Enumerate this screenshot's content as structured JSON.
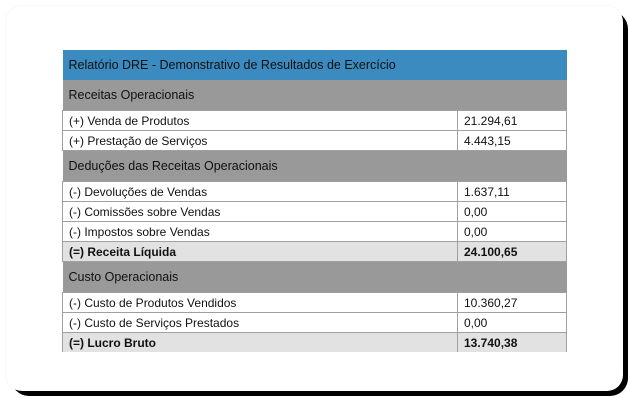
{
  "report": {
    "title": "Relatório DRE - Demonstrativo de Resultados de Exercício",
    "colors": {
      "header_bg": "#3b8ac0",
      "section_bg": "#999999",
      "total_bg": "#e2e2e2",
      "row_bg": "#ffffff"
    },
    "sections": [
      {
        "label": "Receitas Operacionais",
        "rows": [
          {
            "label": "(+) Venda de Produtos",
            "value": "21.294,61"
          },
          {
            "label": "(+) Prestação de Serviços",
            "value": "4.443,15"
          }
        ]
      },
      {
        "label": "Deduções das Receitas Operacionais",
        "rows": [
          {
            "label": "(-) Devoluções de Vendas",
            "value": "1.637,11"
          },
          {
            "label": "(-) Comissões sobre Vendas",
            "value": "0,00"
          },
          {
            "label": "(-) Impostos sobre Vendas",
            "value": "0,00"
          }
        ],
        "total": {
          "label": "(=) Receita Líquida",
          "value": "24.100,65"
        }
      },
      {
        "label": "Custo Operacionais",
        "rows": [
          {
            "label": "(-) Custo de Produtos Vendidos",
            "value": "10.360,27"
          },
          {
            "label": "(-) Custo de Serviços Prestados",
            "value": "0,00"
          }
        ],
        "total": {
          "label": "(=) Lucro Bruto",
          "value": "13.740,38"
        }
      }
    ]
  }
}
